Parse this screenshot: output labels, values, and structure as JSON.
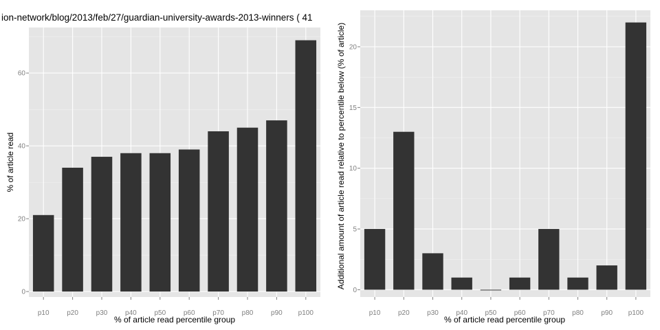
{
  "colors": {
    "panel_background": "#e5e5e5",
    "grid_major": "#ffffff",
    "grid_minor": "#f2f2f2",
    "bar": "#333333",
    "tick_text": "#7f7f7f"
  },
  "chart_data": [
    {
      "type": "bar",
      "title": "ion-network/blog/2013/feb/27/guardian-university-awards-2013-winners ( 41",
      "xlabel": "% of article read percentile group",
      "ylabel": "% of article read",
      "categories": [
        "p10",
        "p20",
        "p30",
        "p40",
        "p50",
        "p60",
        "p70",
        "p80",
        "p90",
        "p100"
      ],
      "values": [
        21,
        34,
        37,
        38,
        38,
        39,
        44,
        45,
        47,
        69
      ],
      "ylim": [
        -1.5,
        72.5
      ],
      "yticks": [
        0,
        20,
        40,
        60
      ],
      "ytick_labels": [
        "0",
        "20",
        "40",
        "60"
      ],
      "grid": true
    },
    {
      "type": "bar",
      "title": "",
      "xlabel": "% of article read percentile group",
      "ylabel": "Additional amount of article read relative to percentile below (% of article)",
      "categories": [
        "p10",
        "p20",
        "p30",
        "p40",
        "p50",
        "p60",
        "p70",
        "p80",
        "p90",
        "p100"
      ],
      "values": [
        5,
        13,
        3,
        1,
        0,
        1,
        5,
        1,
        2,
        22
      ],
      "ylim": [
        -0.6,
        23
      ],
      "yticks": [
        0,
        5,
        10,
        15,
        20
      ],
      "ytick_labels": [
        "0",
        "5",
        "10",
        "15",
        "20"
      ],
      "grid": true
    }
  ]
}
